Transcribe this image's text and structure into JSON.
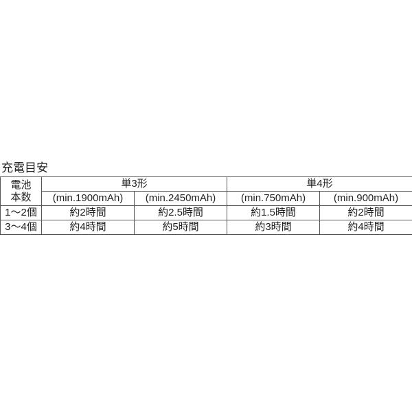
{
  "title": "充電目安",
  "table": {
    "row_header_label_line1": "電池",
    "row_header_label_line2": "本数",
    "group_headers": [
      "単3形",
      "単4形"
    ],
    "sub_headers": [
      "(min.1900mAh)",
      "(min.2450mAh)",
      "(min.750mAh)",
      "(min.900mAh)"
    ],
    "rows": [
      {
        "label": "1～2個",
        "cells": [
          "約2時間",
          "約2.5時間",
          "約1.5時間",
          "約2時間"
        ]
      },
      {
        "label": "3～4個",
        "cells": [
          "約4時間",
          "約5時間",
          "約3時間",
          "約4時間"
        ]
      }
    ],
    "border_color": "#555555",
    "text_color": "#222222",
    "background": "#ffffff",
    "title_fontsize": 17,
    "cell_fontsize": 15
  }
}
